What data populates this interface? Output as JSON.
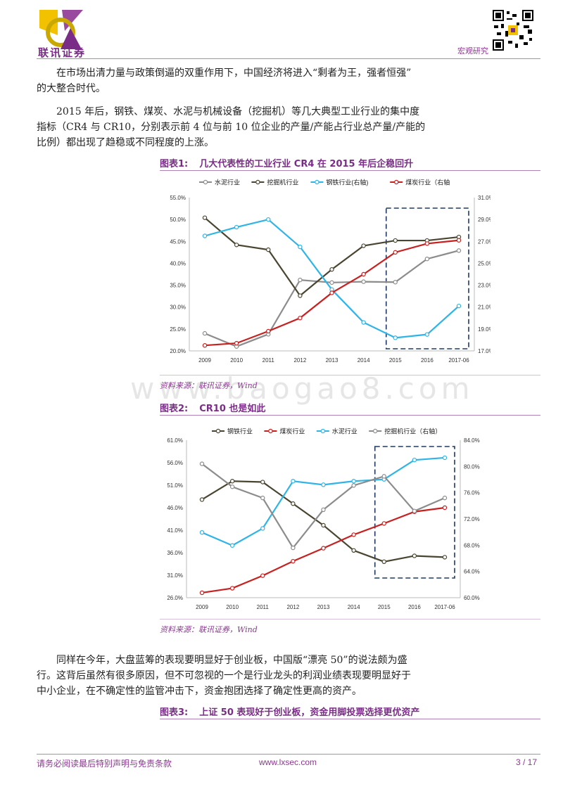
{
  "header": {
    "company_logo_text": "联讯证券",
    "report_type": "宏观研究"
  },
  "paragraphs": {
    "p1": [
      "在市场出清力量与政策倒逼的双重作用下，中国经济将进入“剩者为王，强者恒强”",
      "的大整合时代。"
    ],
    "p2": [
      "2015 年后，钢铁、煤炭、水泥与机械设备（挖掘机）等几大典型工业行业的集中度",
      "指标（CR4 与 CR10，分别表示前 4 位与前 10 位企业的产量/产能占行业总产量/产能的",
      "比例）都出现了趋稳或不同程度的上涨。"
    ],
    "p3": [
      "同样在今年，大盘蓝筹的表现要明显好于创业板，中国版“漂亮 50”的说法颇为盛",
      "行。这背后虽然有很多原因，但不可忽视的一个是行业龙头的利润业绩表现要明显好于",
      "中小企业，在不确定性的监管冲击下，资金抱团选择了确定性更高的资产。"
    ]
  },
  "figures": {
    "fig1": {
      "num": "图表1:",
      "title": "几大代表性的工业行业 CR4 在 2015 年后企稳回升",
      "source": "资料来源：联讯证券，Wind"
    },
    "fig2": {
      "num": "图表2:",
      "title": "CR10 也是如此",
      "source": "资料来源：联讯证券，Wind"
    },
    "fig3": {
      "num": "图表3:",
      "title": "上证 50 表现好于创业板，资金用脚投票选择更优资产"
    }
  },
  "watermark": "www.baogao8.com",
  "footer": {
    "disclaimer": "请务必阅读最后特别声明与免责条款",
    "url": "www.lxsec.com",
    "page": "3 / 17"
  },
  "chart_data": [
    {
      "type": "line",
      "categories": [
        "2009",
        "2010",
        "2011",
        "2012",
        "2013",
        "2014",
        "2015",
        "2016",
        "2017-06"
      ],
      "ylim": [
        20,
        55
      ],
      "y2lim": [
        17,
        31
      ],
      "yticks": [
        "20.0%",
        "25.0%",
        "30.0%",
        "35.0%",
        "40.0%",
        "45.0%",
        "50.0%",
        "55.0%"
      ],
      "y2ticks": [
        "17.0%",
        "19.0%",
        "21.0%",
        "23.0%",
        "25.0%",
        "27.0%",
        "29.0%",
        "31.0%"
      ],
      "legend": "top",
      "series": [
        {
          "name": "水泥行业",
          "axis": "left",
          "color": "#8c8c8c",
          "values": [
            24.0,
            21.0,
            23.8,
            36.2,
            35.6,
            35.8,
            35.7,
            41.0,
            42.9
          ]
        },
        {
          "name": "挖掘机行业",
          "axis": "left",
          "color": "#4a4530",
          "values": [
            50.4,
            44.2,
            43.1,
            32.6,
            38.6,
            44.0,
            45.2,
            45.2,
            46.0
          ]
        },
        {
          "name": "钢铁行业(右轴)",
          "axis": "right",
          "color": "#2eb4e6",
          "values": [
            27.5,
            28.3,
            29.0,
            26.5,
            22.6,
            19.6,
            18.2,
            18.5,
            21.1
          ]
        },
        {
          "name": "煤炭行业（右轴",
          "axis": "right",
          "color": "#c8201f",
          "values": [
            17.5,
            17.7,
            18.8,
            20.0,
            22.3,
            24.0,
            26.0,
            26.8,
            27.1
          ]
        }
      ]
    },
    {
      "type": "line",
      "categories": [
        "2009",
        "2010",
        "2011",
        "2012",
        "2013",
        "2014",
        "2015",
        "2016",
        "2017-06"
      ],
      "ylim": [
        26,
        61
      ],
      "y2lim": [
        60,
        84
      ],
      "yticks": [
        "26.0%",
        "31.0%",
        "36.0%",
        "41.0%",
        "46.0%",
        "51.0%",
        "56.0%",
        "61.0%"
      ],
      "y2ticks": [
        "60.0%",
        "64.0%",
        "68.0%",
        "72.0%",
        "76.0%",
        "80.0%",
        "84.0%"
      ],
      "legend": "top",
      "series": [
        {
          "name": "钢铁行业",
          "axis": "left",
          "color": "#4a4530",
          "values": [
            47.8,
            51.9,
            51.7,
            46.9,
            42.1,
            36.5,
            34.0,
            35.3,
            35.0
          ]
        },
        {
          "name": "煤炭行业",
          "axis": "left",
          "color": "#c8201f",
          "values": [
            27.1,
            28.1,
            30.9,
            34.1,
            37.0,
            40.0,
            42.5,
            45.1,
            46.0
          ]
        },
        {
          "name": "水泥行业",
          "axis": "left",
          "color": "#2eb4e6",
          "values": [
            40.5,
            37.6,
            41.4,
            51.9,
            51.1,
            51.9,
            52.3,
            56.6,
            57.1
          ]
        },
        {
          "name": "挖掘机行业（右轴）",
          "axis": "right",
          "color": "#8c8c8c",
          "values": [
            80.4,
            76.9,
            75.2,
            67.6,
            73.4,
            77.1,
            78.5,
            73.2,
            75.2
          ]
        }
      ]
    }
  ]
}
